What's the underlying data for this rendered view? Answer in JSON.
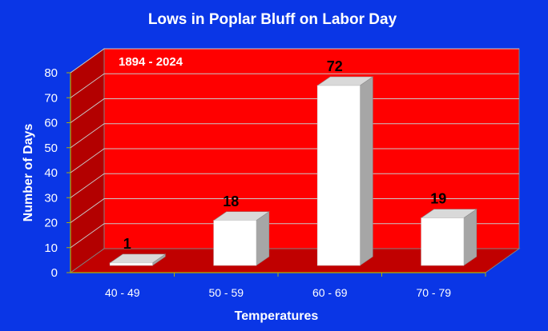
{
  "chart_data": {
    "type": "bar",
    "title": "Lows in Poplar Bluff on Labor Day",
    "subtitle": "1894 - 2024",
    "xlabel": "Temperatures",
    "ylabel": "Number of Days",
    "categories": [
      "40 - 49",
      "50 - 59",
      "60 - 69",
      "70 - 79"
    ],
    "values": [
      1,
      18,
      72,
      19
    ],
    "data_labels": [
      "1",
      "18",
      "72",
      "19"
    ],
    "yticks": [
      0,
      10,
      20,
      30,
      40,
      50,
      60,
      70,
      80
    ],
    "ylim": [
      0,
      80
    ],
    "grid": true,
    "style": "3d",
    "colors": {
      "background": "#0a36e6",
      "back_wall": "#ff0000",
      "side_wall": "#b30000",
      "floor": "#c00000",
      "bar_front": "#ffffff",
      "bar_side": "#a6a6a6",
      "bar_top": "#d9d9d9",
      "gridline": "#c8c8c8"
    }
  }
}
